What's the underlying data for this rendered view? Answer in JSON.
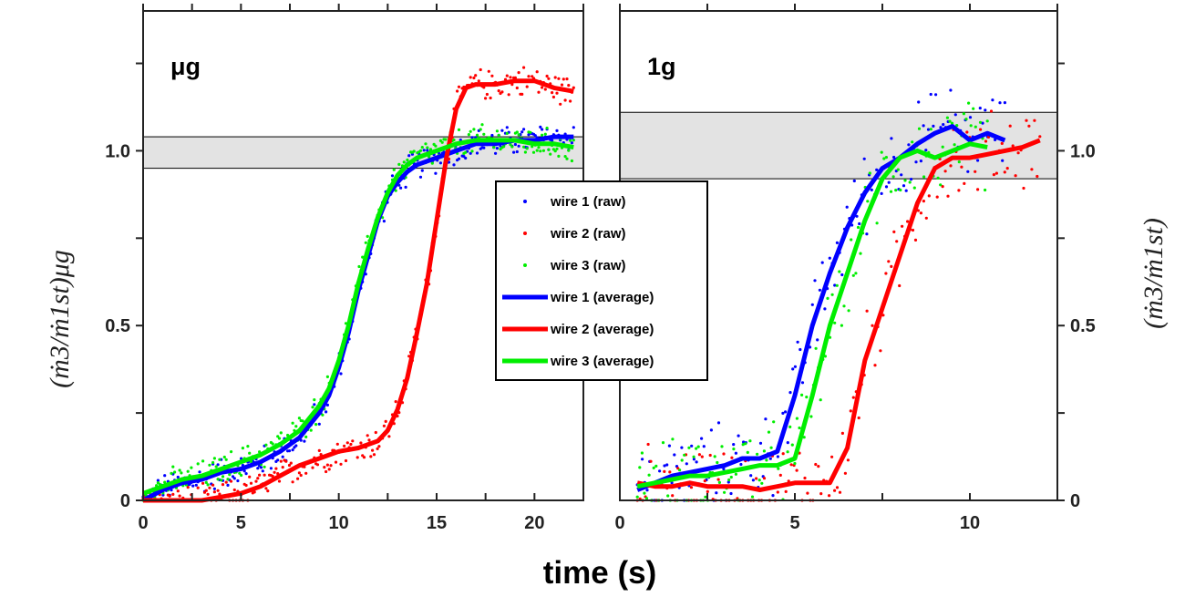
{
  "chart_data": {
    "type": "line",
    "xlabel": "time (s)",
    "ylabel_left": "(ṁ3/ṁ1st)μg",
    "ylabel_right": "(ṁ3/ṁ1st)",
    "legend_placement": "center",
    "legend": [
      {
        "label": "wire 1 (raw)",
        "color": "#0000ff",
        "style": "dots"
      },
      {
        "label": "wire 2 (raw)",
        "color": "#ff0000",
        "style": "dots"
      },
      {
        "label": "wire 3 (raw)",
        "color": "#00ee00",
        "style": "dots"
      },
      {
        "label": "wire 1 (average)",
        "color": "#0000ff",
        "style": "line"
      },
      {
        "label": "wire 2 (average)",
        "color": "#ff0000",
        "style": "line"
      },
      {
        "label": "wire 3 (average)",
        "color": "#00ee00",
        "style": "line"
      }
    ],
    "panels": [
      {
        "label": "μg",
        "xlim": [
          0,
          22.5
        ],
        "ylim": [
          0,
          1.4
        ],
        "xticks": [
          0,
          5,
          10,
          15,
          20
        ],
        "xtick_labels": [
          "0",
          "5",
          "10",
          "15",
          "20"
        ],
        "yticks": [
          0,
          0.5,
          1.0
        ],
        "ytick_labels": [
          "0",
          "0.5",
          "1.0"
        ],
        "band": [
          0.95,
          1.04
        ],
        "series": [
          {
            "name": "wire 1 (average)",
            "color": "#0000ff",
            "x": [
              0,
              1,
              2,
              3,
              4,
              5,
              6,
              7,
              8,
              9,
              9.5,
              10,
              10.5,
              11,
              11.5,
              12,
              12.5,
              13,
              13.5,
              14,
              15,
              16,
              17,
              18,
              19,
              20,
              21,
              22
            ],
            "y": [
              0.0,
              0.03,
              0.05,
              0.06,
              0.08,
              0.09,
              0.11,
              0.14,
              0.18,
              0.25,
              0.3,
              0.38,
              0.48,
              0.6,
              0.7,
              0.8,
              0.87,
              0.91,
              0.94,
              0.96,
              0.98,
              1.0,
              1.02,
              1.02,
              1.03,
              1.03,
              1.04,
              1.04
            ]
          },
          {
            "name": "wire 2 (average)",
            "color": "#ff0000",
            "x": [
              0,
              1,
              2,
              3,
              4,
              5,
              6,
              7,
              8,
              9,
              10,
              11,
              12,
              12.5,
              13,
              13.5,
              14,
              14.5,
              15,
              15.5,
              16,
              16.5,
              17,
              18,
              19,
              20,
              21,
              22
            ],
            "y": [
              0.0,
              0.0,
              0.0,
              0.0,
              0.01,
              0.02,
              0.04,
              0.07,
              0.1,
              0.12,
              0.14,
              0.15,
              0.17,
              0.2,
              0.26,
              0.35,
              0.48,
              0.62,
              0.8,
              0.98,
              1.12,
              1.18,
              1.19,
              1.19,
              1.2,
              1.2,
              1.18,
              1.17
            ]
          },
          {
            "name": "wire 3 (average)",
            "color": "#00ee00",
            "x": [
              0,
              1,
              2,
              3,
              4,
              5,
              6,
              7,
              8,
              9,
              9.5,
              10,
              10.5,
              11,
              11.5,
              12,
              12.5,
              13,
              13.5,
              14,
              15,
              16,
              17,
              18,
              19,
              20,
              21,
              22
            ],
            "y": [
              0.02,
              0.04,
              0.06,
              0.07,
              0.09,
              0.11,
              0.13,
              0.16,
              0.2,
              0.27,
              0.32,
              0.4,
              0.5,
              0.62,
              0.72,
              0.81,
              0.88,
              0.93,
              0.96,
              0.98,
              1.0,
              1.02,
              1.03,
              1.03,
              1.03,
              1.02,
              1.02,
              1.01
            ]
          }
        ]
      },
      {
        "label": "1g",
        "xlim": [
          0,
          12.5
        ],
        "ylim": [
          0,
          1.4
        ],
        "xticks": [
          0,
          5,
          10
        ],
        "xtick_labels": [
          "0",
          "5",
          "10"
        ],
        "yticks": [
          0,
          0.5,
          1.0
        ],
        "ytick_labels": [
          "0",
          "0.5",
          "1.0"
        ],
        "band": [
          0.92,
          1.11
        ],
        "series": [
          {
            "name": "wire 1 (average)",
            "color": "#0000ff",
            "x": [
              0.5,
              1,
              1.5,
              2,
              2.5,
              3,
              3.5,
              4,
              4.5,
              5,
              5.5,
              6,
              6.5,
              7,
              7.5,
              8,
              8.5,
              9,
              9.5,
              10,
              10.5,
              11
            ],
            "y": [
              0.03,
              0.05,
              0.07,
              0.08,
              0.09,
              0.1,
              0.12,
              0.12,
              0.14,
              0.3,
              0.5,
              0.65,
              0.78,
              0.88,
              0.95,
              0.98,
              1.02,
              1.05,
              1.07,
              1.03,
              1.05,
              1.03
            ]
          },
          {
            "name": "wire 2 (average)",
            "color": "#ff0000",
            "x": [
              0.5,
              1,
              1.5,
              2,
              2.5,
              3,
              3.5,
              4,
              4.5,
              5,
              5.5,
              6,
              6.5,
              7,
              7.5,
              8,
              8.5,
              9,
              9.5,
              10,
              10.5,
              11,
              11.5,
              12
            ],
            "y": [
              0.05,
              0.04,
              0.04,
              0.05,
              0.04,
              0.04,
              0.04,
              0.03,
              0.04,
              0.05,
              0.05,
              0.05,
              0.15,
              0.4,
              0.55,
              0.7,
              0.85,
              0.95,
              0.98,
              0.98,
              0.99,
              1.0,
              1.01,
              1.03
            ]
          },
          {
            "name": "wire 3 (average)",
            "color": "#00ee00",
            "x": [
              0.5,
              1,
              1.5,
              2,
              2.5,
              3,
              3.5,
              4,
              4.5,
              5,
              5.5,
              6,
              6.5,
              7,
              7.5,
              8,
              8.5,
              9,
              9.5,
              10,
              10.5
            ],
            "y": [
              0.04,
              0.05,
              0.06,
              0.07,
              0.07,
              0.08,
              0.09,
              0.1,
              0.1,
              0.12,
              0.3,
              0.5,
              0.65,
              0.8,
              0.92,
              0.98,
              1.0,
              0.98,
              1.0,
              1.02,
              1.01
            ]
          }
        ]
      }
    ]
  }
}
